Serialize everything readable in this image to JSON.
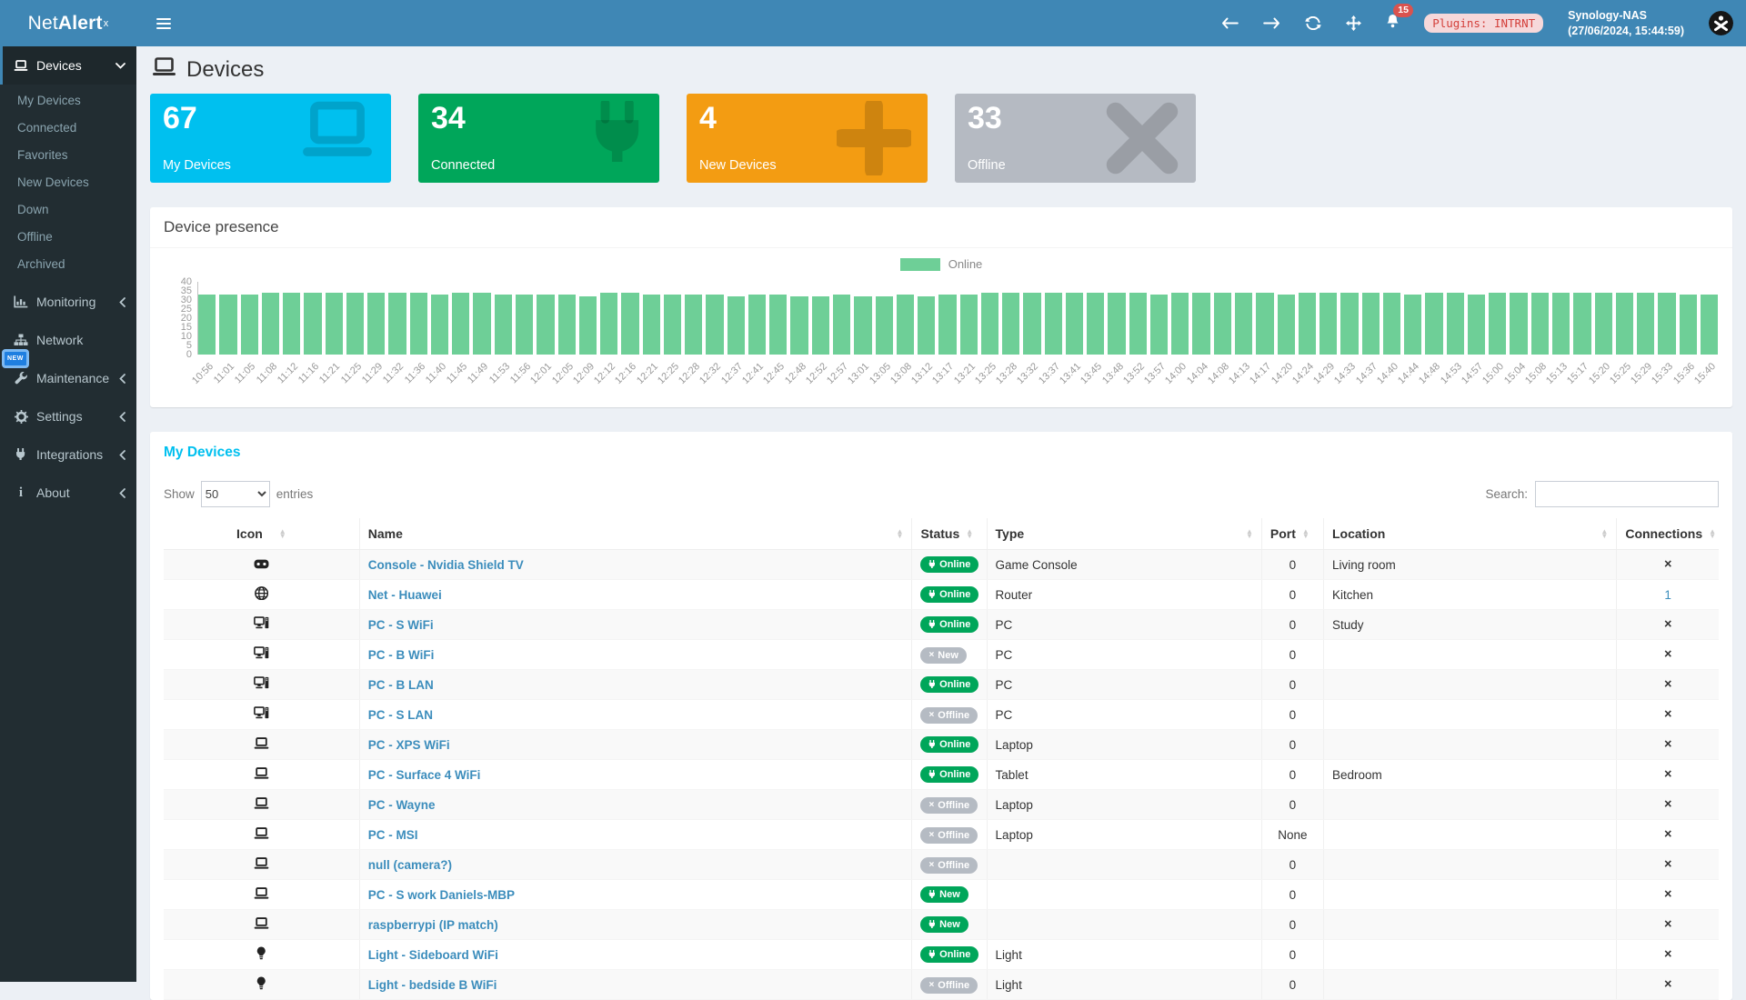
{
  "colors": {
    "header_blue": "#3f87b5",
    "sidebar_dark": "#222d32",
    "card_cyan": "#00c0ef",
    "card_green": "#00a65a",
    "card_orange": "#f39c12",
    "card_gray": "#b5bac2",
    "bar_green": "#6ecf97",
    "link_blue": "#3c8dbc",
    "badge_green": "#00a65a",
    "badge_gray": "#b5bbc3",
    "alert_red": "#d9534f",
    "title_cyan": "#00c0ef"
  },
  "app": {
    "logo_net": "Net",
    "logo_alert": "Alert",
    "logo_sup": "x"
  },
  "header": {
    "notif_count": "15",
    "plugins_badge": "Plugins: INTRNT",
    "host": "Synology-NAS",
    "timestamp": "(27/06/2024, 15:44:59)"
  },
  "sidebar": {
    "items": [
      {
        "label": "Devices",
        "icon": "laptop-icon",
        "chevron": "down",
        "active": true,
        "children": [
          "My Devices",
          "Connected",
          "Favorites",
          "New Devices",
          "Down",
          "Offline",
          "Archived"
        ]
      },
      {
        "label": "Monitoring",
        "icon": "chart-icon",
        "chevron": "left"
      },
      {
        "label": "Network",
        "icon": "sitemap-icon",
        "chevron": ""
      },
      {
        "label": "Maintenance",
        "icon": "wrench-icon",
        "chevron": "left",
        "badge": "NEW"
      },
      {
        "label": "Settings",
        "icon": "gear-icon",
        "chevron": "left"
      },
      {
        "label": "Integrations",
        "icon": "plug-icon",
        "chevron": "left"
      },
      {
        "label": "About",
        "icon": "info-icon",
        "chevron": "left"
      }
    ]
  },
  "page": {
    "title": "Devices"
  },
  "cards": [
    {
      "value": "67",
      "label": "My Devices",
      "color": "#00c0ef",
      "icon": "laptop-icon"
    },
    {
      "value": "34",
      "label": "Connected",
      "color": "#00a65a",
      "icon": "plug-icon"
    },
    {
      "value": "4",
      "label": "New Devices",
      "color": "#f39c12",
      "icon": "plus-icon"
    },
    {
      "value": "33",
      "label": "Offline",
      "color": "#b5bac2",
      "icon": "x-icon"
    }
  ],
  "presence": {
    "title": "Device presence",
    "chart_data": {
      "type": "bar",
      "title": "Device presence",
      "legend": [
        {
          "label": "Online",
          "color": "#6ecf97"
        }
      ],
      "legend_position": "top-center",
      "ylim": [
        0,
        40
      ],
      "yticks": [
        40,
        35,
        30,
        25,
        20,
        15,
        10,
        5,
        0
      ],
      "categories": [
        "10:56",
        "11:01",
        "11:05",
        "11:08",
        "11:12",
        "11:16",
        "11:21",
        "11:25",
        "11:29",
        "11:32",
        "11:36",
        "11:40",
        "11:45",
        "11:49",
        "11:53",
        "11:56",
        "12:01",
        "12:05",
        "12:09",
        "12:12",
        "12:16",
        "12:21",
        "12:25",
        "12:28",
        "12:32",
        "12:37",
        "12:41",
        "12:45",
        "12:48",
        "12:52",
        "12:57",
        "13:01",
        "13:05",
        "13:08",
        "13:12",
        "13:17",
        "13:21",
        "13:25",
        "13:28",
        "13:32",
        "13:37",
        "13:41",
        "13:45",
        "13:48",
        "13:52",
        "13:57",
        "14:00",
        "14:04",
        "14:08",
        "14:13",
        "14:17",
        "14:20",
        "14:24",
        "14:29",
        "14:33",
        "14:37",
        "14:40",
        "14:44",
        "14:48",
        "14:53",
        "14:57",
        "15:00",
        "15:04",
        "15:08",
        "15:13",
        "15:17",
        "15:20",
        "15:25",
        "15:29",
        "15:33",
        "15:36",
        "15:40"
      ],
      "series": [
        {
          "name": "Online",
          "values": [
            33,
            33,
            33,
            34,
            34,
            34,
            34,
            34,
            34,
            34,
            34,
            33,
            34,
            34,
            33,
            33,
            33,
            33,
            32,
            34,
            34,
            33,
            33,
            33,
            33,
            32,
            33,
            33,
            32,
            32,
            33,
            32,
            32,
            33,
            32,
            33,
            33,
            34,
            34,
            34,
            34,
            34,
            34,
            34,
            34,
            33,
            34,
            34,
            34,
            34,
            34,
            33,
            34,
            34,
            34,
            34,
            34,
            33,
            34,
            34,
            33,
            34,
            34,
            34,
            34,
            34,
            34,
            34,
            34,
            34,
            33,
            33
          ]
        }
      ]
    }
  },
  "devices_table": {
    "title": "My Devices",
    "show_label": "Show",
    "page_size": "50",
    "entries_label": "entries",
    "search_label": "Search:",
    "search_value": "",
    "columns": [
      {
        "label": "Icon",
        "align": "center"
      },
      {
        "label": "Name",
        "align": "left"
      },
      {
        "label": "Status",
        "align": "tight"
      },
      {
        "label": "Type",
        "align": "left"
      },
      {
        "label": "Port",
        "align": "tight"
      },
      {
        "label": "Location",
        "align": "left"
      },
      {
        "label": "Connections",
        "align": "tight"
      }
    ],
    "rows": [
      {
        "icon": "gamepad-icon",
        "name": "Console - Nvidia Shield TV",
        "status": {
          "label": "Online",
          "style": "green"
        },
        "type": "Game Console",
        "port": "0",
        "location": "Living room",
        "connections": "x"
      },
      {
        "icon": "globe-icon",
        "name": "Net - Huawei",
        "status": {
          "label": "Online",
          "style": "green"
        },
        "type": "Router",
        "port": "0",
        "location": "Kitchen",
        "connections": "1"
      },
      {
        "icon": "desktop-icon",
        "name": "PC - S WiFi",
        "status": {
          "label": "Online",
          "style": "green"
        },
        "type": "PC",
        "port": "0",
        "location": "Study",
        "connections": "x"
      },
      {
        "icon": "desktop-icon",
        "name": "PC - B WiFi",
        "status": {
          "label": "New",
          "style": "gray"
        },
        "type": "PC",
        "port": "0",
        "location": "",
        "connections": "x"
      },
      {
        "icon": "desktop-icon",
        "name": "PC - B LAN",
        "status": {
          "label": "Online",
          "style": "green"
        },
        "type": "PC",
        "port": "0",
        "location": "",
        "connections": "x"
      },
      {
        "icon": "desktop-icon",
        "name": "PC - S LAN",
        "status": {
          "label": "Offline",
          "style": "gray"
        },
        "type": "PC",
        "port": "0",
        "location": "",
        "connections": "x"
      },
      {
        "icon": "laptop-icon",
        "name": "PC - XPS WiFi",
        "status": {
          "label": "Online",
          "style": "green"
        },
        "type": "Laptop",
        "port": "0",
        "location": "",
        "connections": "x"
      },
      {
        "icon": "laptop-icon",
        "name": "PC - Surface 4 WiFi",
        "status": {
          "label": "Online",
          "style": "green"
        },
        "type": "Tablet",
        "port": "0",
        "location": "Bedroom",
        "connections": "x"
      },
      {
        "icon": "laptop-icon",
        "name": "PC - Wayne",
        "status": {
          "label": "Offline",
          "style": "gray"
        },
        "type": "Laptop",
        "port": "0",
        "location": "",
        "connections": "x"
      },
      {
        "icon": "laptop-icon",
        "name": "PC - MSI",
        "status": {
          "label": "Offline",
          "style": "gray"
        },
        "type": "Laptop",
        "port": "None",
        "location": "",
        "connections": "x"
      },
      {
        "icon": "laptop-icon",
        "name": "null (camera?)",
        "status": {
          "label": "Offline",
          "style": "gray"
        },
        "type": "",
        "port": "0",
        "location": "",
        "connections": "x"
      },
      {
        "icon": "laptop-icon",
        "name": "PC - S work Daniels-MBP",
        "status": {
          "label": "New",
          "style": "green"
        },
        "type": "",
        "port": "0",
        "location": "",
        "connections": "x"
      },
      {
        "icon": "laptop-icon",
        "name": "raspberrypi (IP match)",
        "status": {
          "label": "New",
          "style": "green"
        },
        "type": "",
        "port": "0",
        "location": "",
        "connections": "x"
      },
      {
        "icon": "lightbulb-icon",
        "name": "Light - Sideboard WiFi",
        "status": {
          "label": "Online",
          "style": "green"
        },
        "type": "Light",
        "port": "0",
        "location": "",
        "connections": "x"
      },
      {
        "icon": "lightbulb-icon",
        "name": "Light - bedside B WiFi",
        "status": {
          "label": "Offline",
          "style": "gray"
        },
        "type": "Light",
        "port": "0",
        "location": "",
        "connections": "x"
      }
    ]
  }
}
